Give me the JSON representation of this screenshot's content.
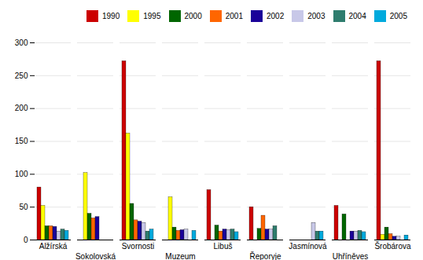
{
  "chart_data": {
    "type": "bar",
    "categories": [
      "Alžírská",
      "Sokolovská",
      "Svornosti",
      "Muzeum",
      "Libuš",
      "Řeporyje",
      "Jasmínová",
      "Uhříněves",
      "Šrobárova"
    ],
    "series": [
      {
        "name": "1990",
        "color": "#cc0000",
        "values": [
          80,
          null,
          272,
          null,
          76,
          50,
          null,
          52,
          272
        ]
      },
      {
        "name": "1995",
        "color": "#ffff00",
        "values": [
          52,
          102,
          162,
          65,
          null,
          null,
          null,
          null,
          8
        ]
      },
      {
        "name": "2000",
        "color": "#006600",
        "values": [
          21,
          40,
          55,
          19,
          22,
          17,
          null,
          39,
          19
        ]
      },
      {
        "name": "2001",
        "color": "#ff6600",
        "values": [
          21,
          33,
          30,
          14,
          13,
          37,
          null,
          null,
          9
        ]
      },
      {
        "name": "2002",
        "color": "#1a0099",
        "values": [
          20,
          35,
          28,
          15,
          16,
          16,
          null,
          13,
          5
        ]
      },
      {
        "name": "2003",
        "color": "#c8c8e8",
        "values": [
          13,
          null,
          26,
          16,
          15,
          16,
          26,
          13,
          5
        ]
      },
      {
        "name": "2004",
        "color": "#2e7d6e",
        "values": [
          16,
          null,
          13,
          null,
          16,
          21,
          13,
          14,
          null
        ]
      },
      {
        "name": "2005",
        "color": "#00aadd",
        "values": [
          14,
          null,
          16,
          14,
          12,
          null,
          13,
          12,
          7
        ]
      }
    ],
    "ylim": [
      0,
      300
    ],
    "yticks": [
      0,
      50,
      100,
      150,
      200,
      250,
      300
    ],
    "grid": true,
    "legend": "upper right"
  }
}
